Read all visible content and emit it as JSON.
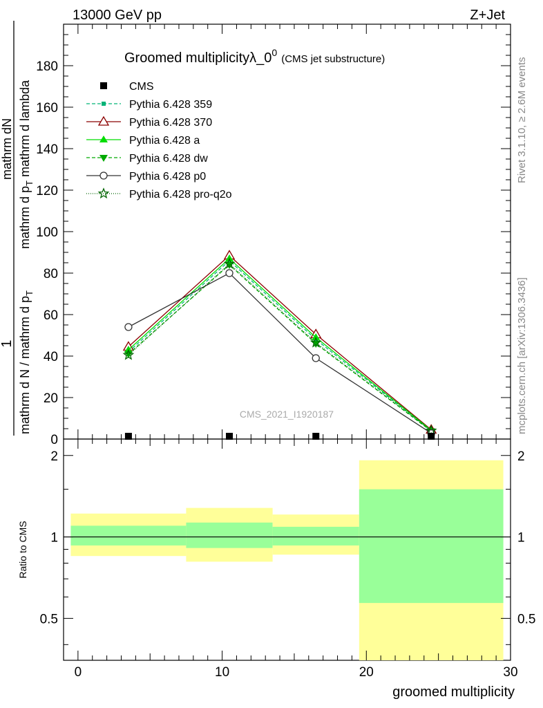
{
  "header": {
    "left": "13000 GeV pp",
    "right": "Z+Jet"
  },
  "side_labels": {
    "rivet": "Rivet 3.1.10, ≥ 2.6M events",
    "mcplots": "mcplots.cern.ch [arXiv:1306.3436]"
  },
  "watermark": "CMS_2021_I1920187",
  "chart_data": [
    {
      "type": "line",
      "title_main": "Groomed multiplicityλ_0",
      "title_sup": "0",
      "title_note": "(CMS jet substructure)",
      "ylabel_num": "mathrm dN",
      "ylabel_den_a": "mathrm d p",
      "ylabel_den_sub": "T",
      "ylabel_den_b": " mathrm d lambda",
      "ylabel_pre_a": "1",
      "ylabel_pre_den": "mathrm d N / mathrm d p",
      "ylabel_pre_sub": "T",
      "ylim": [
        0,
        200
      ],
      "yticks": [
        0,
        20,
        40,
        60,
        80,
        100,
        120,
        140,
        160,
        180
      ],
      "xlim": [
        -1,
        30
      ],
      "bin_centers": [
        3.5,
        10.5,
        16.5,
        24.5
      ],
      "bin_edges": [
        -1,
        7.5,
        13.5,
        19.5,
        29.5
      ],
      "cms_values": [
        0.4,
        0.8,
        0.7,
        0.6
      ],
      "series": [
        {
          "name": "Pythia 6.428 359",
          "color": "#00b377",
          "dash": "5,3",
          "marker": "square-small",
          "values": [
            42,
            86,
            48,
            4
          ]
        },
        {
          "name": "Pythia 6.428 370",
          "color": "#8b0000",
          "dash": "",
          "marker": "triangle-open",
          "values": [
            44.5,
            88.5,
            50.5,
            4.5
          ]
        },
        {
          "name": "Pythia 6.428 a",
          "color": "#00dd00",
          "dash": "",
          "marker": "triangle",
          "values": [
            43,
            87,
            49,
            4.2
          ]
        },
        {
          "name": "Pythia 6.428 dw",
          "color": "#00aa00",
          "dash": "5,3",
          "marker": "triangle-down",
          "values": [
            41,
            84,
            46,
            3.8
          ]
        },
        {
          "name": "Pythia 6.428 p0",
          "color": "#333333",
          "dash": "",
          "marker": "circle-open",
          "values": [
            54,
            80,
            39,
            2.8
          ]
        },
        {
          "name": "Pythia 6.428 pro-q2o",
          "color": "#006400",
          "dash": "1,2",
          "marker": "star",
          "values": [
            40.5,
            84.5,
            46.5,
            4
          ]
        }
      ],
      "legend_cms_label": "CMS"
    },
    {
      "type": "area",
      "ylabel": "Ratio to CMS",
      "xlabel": "groomed multiplicity",
      "ylim": [
        0.35,
        2.3
      ],
      "log_y": true,
      "yticks": [
        0.5,
        1,
        2
      ],
      "xticks": [
        0,
        10,
        20,
        30
      ],
      "bins": [
        {
          "x0": -0.5,
          "x1": 7.5,
          "green": [
            0.93,
            1.1
          ],
          "yellow": [
            0.85,
            1.22
          ]
        },
        {
          "x0": 7.5,
          "x1": 13.5,
          "green": [
            0.91,
            1.13
          ],
          "yellow": [
            0.81,
            1.28
          ]
        },
        {
          "x0": 13.5,
          "x1": 19.5,
          "green": [
            0.93,
            1.09
          ],
          "yellow": [
            0.86,
            1.21
          ]
        },
        {
          "x0": 19.5,
          "x1": 29.5,
          "green": [
            0.57,
            1.5
          ],
          "yellow": [
            0.34,
            1.92
          ]
        }
      ],
      "colors": {
        "green": "#99ff99",
        "yellow": "#ffff99"
      }
    }
  ]
}
